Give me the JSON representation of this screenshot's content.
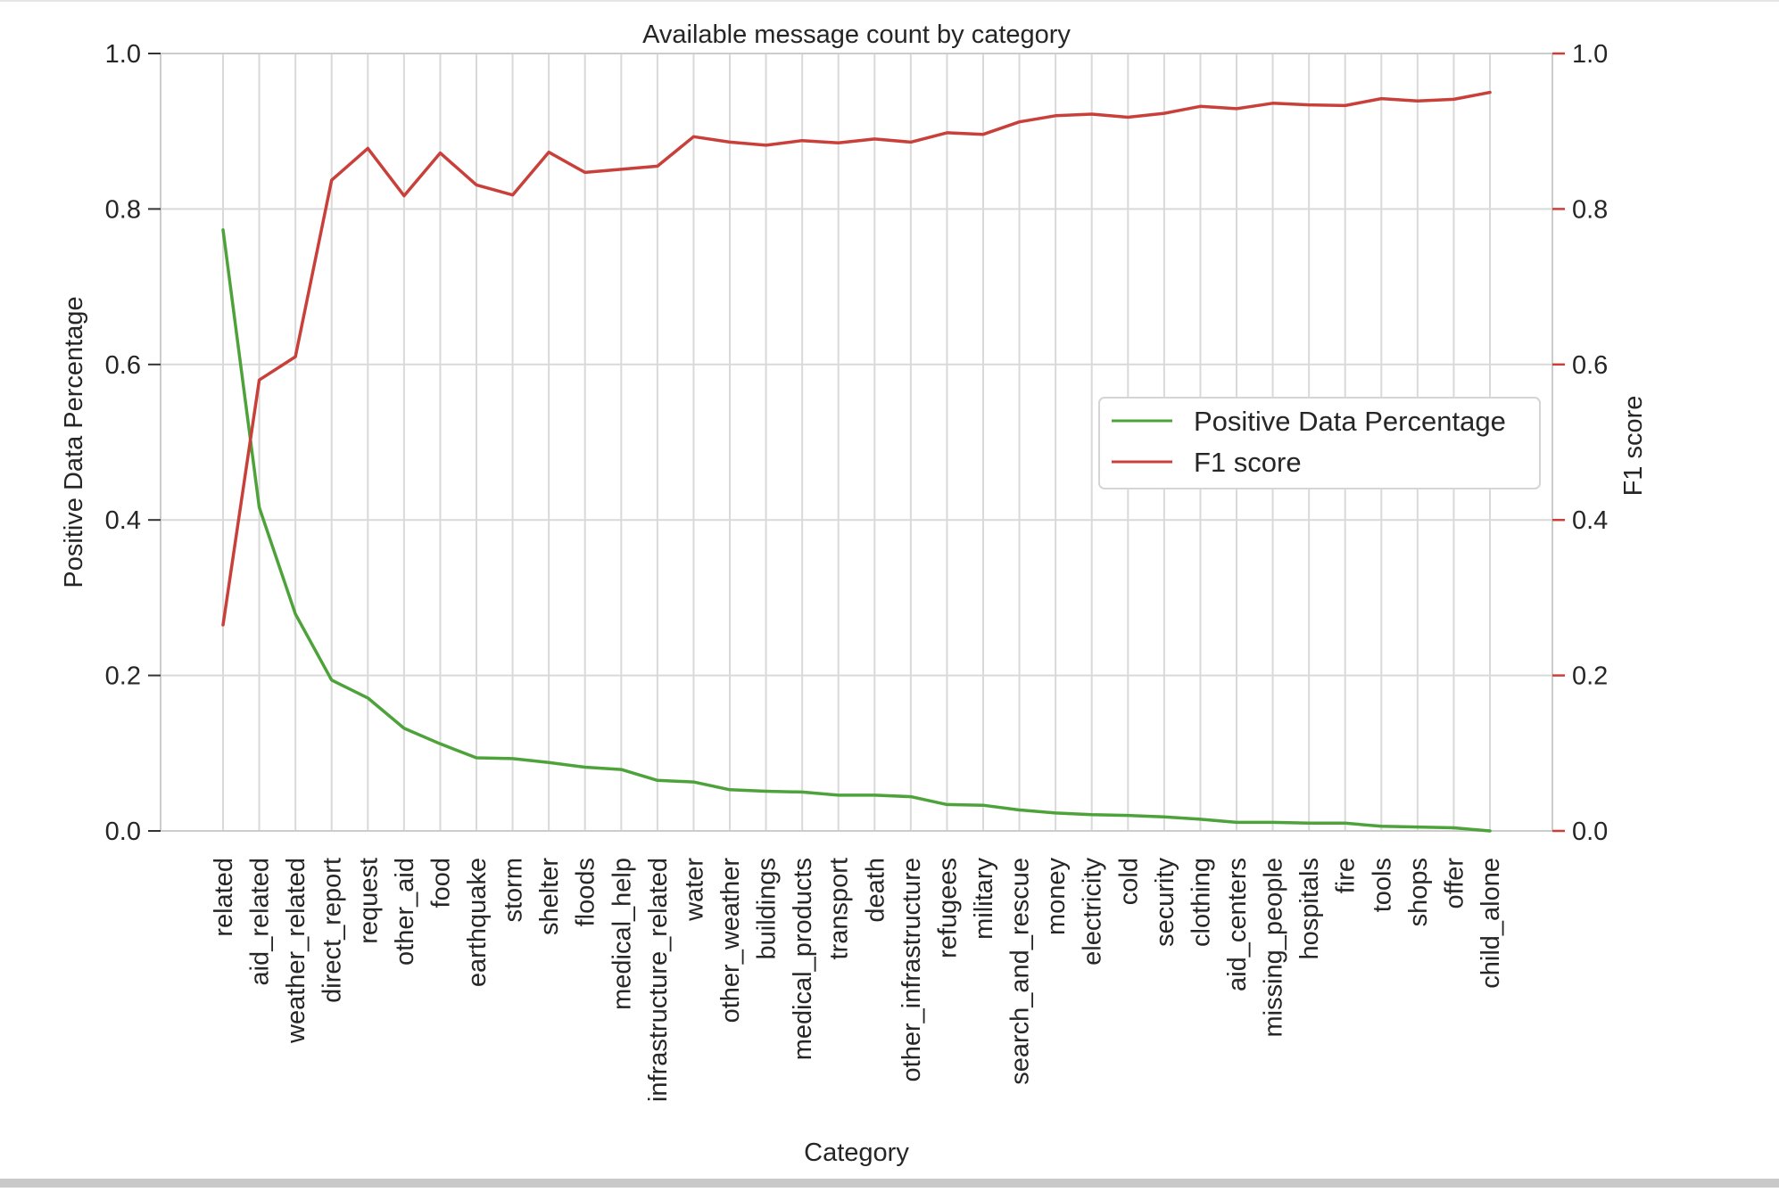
{
  "chart_data": {
    "type": "line",
    "title": "Available message count by category",
    "xlabel": "Category",
    "ylabel": "Positive Data Percentage",
    "ylabel_right": "F1 score",
    "ylim": [
      0.0,
      1.0
    ],
    "ylim_right": [
      0.0,
      1.0
    ],
    "yticks": [
      "0.0",
      "0.2",
      "0.4",
      "0.6",
      "0.8",
      "1.0"
    ],
    "grid": true,
    "legend_position": "center-right",
    "categories": [
      "related",
      "aid_related",
      "weather_related",
      "direct_report",
      "request",
      "other_aid",
      "food",
      "earthquake",
      "storm",
      "shelter",
      "floods",
      "medical_help",
      "infrastructure_related",
      "water",
      "other_weather",
      "buildings",
      "medical_products",
      "transport",
      "death",
      "other_infrastructure",
      "refugees",
      "military",
      "search_and_rescue",
      "money",
      "electricity",
      "cold",
      "security",
      "clothing",
      "aid_centers",
      "missing_people",
      "hospitals",
      "fire",
      "tools",
      "shops",
      "offer",
      "child_alone"
    ],
    "series": [
      {
        "name": "Positive Data Percentage",
        "axis": "left",
        "color": "#4da33a",
        "values": [
          0.773,
          0.416,
          0.279,
          0.194,
          0.171,
          0.132,
          0.112,
          0.094,
          0.093,
          0.088,
          0.082,
          0.079,
          0.065,
          0.063,
          0.053,
          0.051,
          0.05,
          0.046,
          0.046,
          0.044,
          0.034,
          0.033,
          0.027,
          0.023,
          0.021,
          0.02,
          0.018,
          0.015,
          0.011,
          0.011,
          0.01,
          0.01,
          0.006,
          0.005,
          0.004,
          0.0
        ]
      },
      {
        "name": "F1 score",
        "axis": "right",
        "color": "#c9403a",
        "values": [
          0.265,
          0.58,
          0.61,
          0.837,
          0.878,
          0.817,
          0.872,
          0.831,
          0.818,
          0.873,
          0.847,
          0.851,
          0.855,
          0.893,
          0.886,
          0.882,
          0.888,
          0.885,
          0.89,
          0.886,
          0.898,
          0.896,
          0.912,
          0.92,
          0.922,
          0.918,
          0.923,
          0.932,
          0.929,
          0.936,
          0.934,
          0.933,
          0.942,
          0.939,
          0.941,
          0.95
        ]
      }
    ]
  }
}
